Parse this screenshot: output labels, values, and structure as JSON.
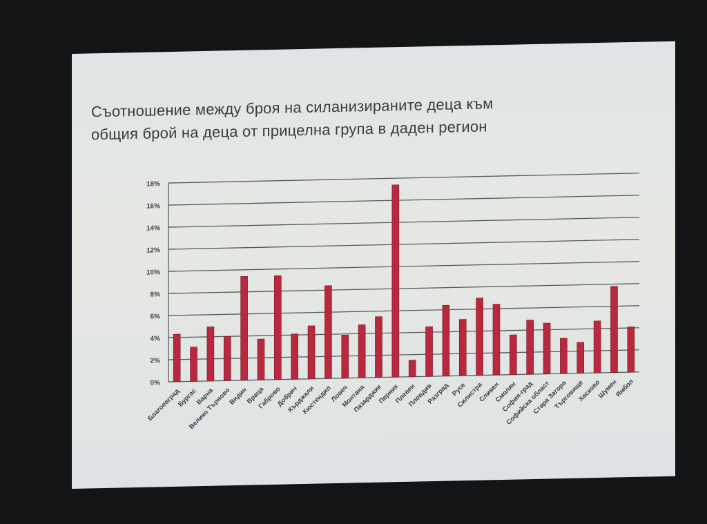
{
  "chart_data": {
    "type": "bar",
    "title": "Съотношение между броя на силанизираните деца към общия брой на деца от прицелна група в даден регион",
    "title_lines": [
      "Съотношение между броя на силанизираните деца към",
      "общия брой на деца от прицелна група в даден регион"
    ],
    "categories": [
      "Благоевград",
      "Бургас",
      "Варна",
      "Велико Търново",
      "Видин",
      "Враца",
      "Габрово",
      "Добрич",
      "Кърджали",
      "Кюстендил",
      "Ловеч",
      "Монтана",
      "Пазарджик",
      "Перник",
      "Плевен",
      "Пловдив",
      "Разград",
      "Русе",
      "Силистра",
      "Сливен",
      "Смолян",
      "София-град",
      "Софийска област",
      "Стара Загора",
      "Търговище",
      "Хасково",
      "Шумен",
      "Ямбол"
    ],
    "values": [
      4.3,
      3.1,
      4.9,
      4.0,
      9.4,
      3.7,
      9.4,
      4.1,
      4.8,
      8.4,
      3.9,
      4.8,
      5.5,
      17.4,
      1.5,
      4.5,
      6.4,
      5.1,
      7.0,
      6.4,
      3.6,
      4.9,
      4.6,
      3.2,
      2.8,
      4.7,
      7.8,
      4.1
    ],
    "yticks": [
      "0%",
      "2%",
      "4%",
      "6%",
      "8%",
      "10%",
      "12%",
      "14%",
      "16%",
      "18%"
    ],
    "ylim": [
      0,
      18
    ],
    "unit": "%",
    "grid": true,
    "legend": "none",
    "bar_color": "#b8283e"
  }
}
